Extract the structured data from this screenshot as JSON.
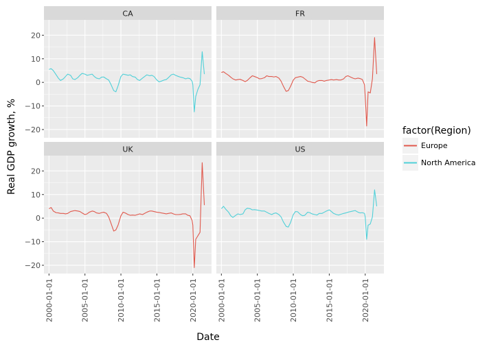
{
  "chart_data": {
    "type": "line",
    "xlabel": "Date",
    "ylabel": "Real GDP growth, %",
    "ylim": [
      -23.5,
      26.5
    ],
    "yticks": [
      20,
      10,
      0,
      -10,
      -20
    ],
    "ytick_labels": [
      "20",
      "10",
      "0",
      "−10",
      "−20"
    ],
    "xlim": [
      1999.3,
      2022.6
    ],
    "xticks": [
      2000,
      2005,
      2010,
      2015,
      2020
    ],
    "xtick_labels": [
      "2000-01-01",
      "2005-01-01",
      "2010-01-01",
      "2015-01-01",
      "2020-01-01"
    ],
    "grid": true,
    "legend": {
      "title": "factor(Region)",
      "position": "right",
      "entries": [
        {
          "label": "Europe",
          "color": "#e0584c"
        },
        {
          "label": "North America",
          "color": "#4fd0d8"
        }
      ]
    },
    "panels": [
      {
        "name": "CA",
        "region": "North America",
        "points": [
          [
            2000.0,
            5.5
          ],
          [
            2000.3,
            5.8
          ],
          [
            2000.6,
            5.0
          ],
          [
            2001.0,
            3.2
          ],
          [
            2001.3,
            1.8
          ],
          [
            2001.6,
            0.8
          ],
          [
            2002.0,
            1.5
          ],
          [
            2002.3,
            2.5
          ],
          [
            2002.6,
            3.5
          ],
          [
            2003.0,
            3.0
          ],
          [
            2003.3,
            1.5
          ],
          [
            2003.6,
            1.2
          ],
          [
            2004.0,
            2.0
          ],
          [
            2004.3,
            3.0
          ],
          [
            2004.6,
            3.8
          ],
          [
            2005.0,
            3.5
          ],
          [
            2005.3,
            3.0
          ],
          [
            2005.6,
            3.2
          ],
          [
            2006.0,
            3.5
          ],
          [
            2006.3,
            2.5
          ],
          [
            2006.6,
            1.8
          ],
          [
            2007.0,
            1.5
          ],
          [
            2007.3,
            2.2
          ],
          [
            2007.6,
            2.3
          ],
          [
            2008.0,
            1.5
          ],
          [
            2008.3,
            1.0
          ],
          [
            2008.6,
            -0.8
          ],
          [
            2009.0,
            -3.5
          ],
          [
            2009.3,
            -4.0
          ],
          [
            2009.6,
            -1.5
          ],
          [
            2010.0,
            2.5
          ],
          [
            2010.3,
            3.5
          ],
          [
            2010.6,
            3.3
          ],
          [
            2011.0,
            3.0
          ],
          [
            2011.3,
            3.2
          ],
          [
            2011.6,
            2.5
          ],
          [
            2012.0,
            2.2
          ],
          [
            2012.3,
            1.2
          ],
          [
            2012.6,
            0.8
          ],
          [
            2013.0,
            1.8
          ],
          [
            2013.3,
            2.5
          ],
          [
            2013.6,
            3.2
          ],
          [
            2014.0,
            2.8
          ],
          [
            2014.3,
            3.0
          ],
          [
            2014.6,
            2.5
          ],
          [
            2015.0,
            1.0
          ],
          [
            2015.3,
            0.2
          ],
          [
            2015.6,
            0.5
          ],
          [
            2016.0,
            1.0
          ],
          [
            2016.3,
            1.2
          ],
          [
            2016.6,
            2.0
          ],
          [
            2017.0,
            3.2
          ],
          [
            2017.3,
            3.5
          ],
          [
            2017.6,
            3.0
          ],
          [
            2018.0,
            2.5
          ],
          [
            2018.3,
            2.2
          ],
          [
            2018.6,
            2.0
          ],
          [
            2019.0,
            1.5
          ],
          [
            2019.3,
            1.8
          ],
          [
            2019.6,
            1.6
          ],
          [
            2019.9,
            0.5
          ],
          [
            2020.0,
            -1.0
          ],
          [
            2020.2,
            -12.5
          ],
          [
            2020.4,
            -6.0
          ],
          [
            2020.7,
            -3.0
          ],
          [
            2021.0,
            -1.0
          ],
          [
            2021.3,
            13.0
          ],
          [
            2021.6,
            3.5
          ]
        ]
      },
      {
        "name": "FR",
        "region": "Europe",
        "points": [
          [
            2000.0,
            4.2
          ],
          [
            2000.3,
            4.5
          ],
          [
            2000.6,
            3.8
          ],
          [
            2001.0,
            3.0
          ],
          [
            2001.3,
            2.2
          ],
          [
            2001.6,
            1.5
          ],
          [
            2002.0,
            1.0
          ],
          [
            2002.3,
            1.2
          ],
          [
            2002.6,
            1.3
          ],
          [
            2003.0,
            0.8
          ],
          [
            2003.3,
            0.3
          ],
          [
            2003.6,
            0.8
          ],
          [
            2004.0,
            2.0
          ],
          [
            2004.3,
            2.8
          ],
          [
            2004.6,
            2.5
          ],
          [
            2005.0,
            2.0
          ],
          [
            2005.3,
            1.5
          ],
          [
            2005.6,
            1.6
          ],
          [
            2006.0,
            2.0
          ],
          [
            2006.3,
            2.8
          ],
          [
            2006.6,
            2.5
          ],
          [
            2007.0,
            2.5
          ],
          [
            2007.3,
            2.3
          ],
          [
            2007.6,
            2.5
          ],
          [
            2008.0,
            1.8
          ],
          [
            2008.3,
            0.5
          ],
          [
            2008.6,
            -1.5
          ],
          [
            2009.0,
            -3.8
          ],
          [
            2009.3,
            -3.5
          ],
          [
            2009.6,
            -1.8
          ],
          [
            2010.0,
            1.0
          ],
          [
            2010.3,
            2.0
          ],
          [
            2010.6,
            2.2
          ],
          [
            2011.0,
            2.5
          ],
          [
            2011.3,
            2.2
          ],
          [
            2011.6,
            1.5
          ],
          [
            2012.0,
            0.5
          ],
          [
            2012.3,
            0.3
          ],
          [
            2012.6,
            0.0
          ],
          [
            2013.0,
            -0.2
          ],
          [
            2013.3,
            0.5
          ],
          [
            2013.6,
            0.8
          ],
          [
            2014.0,
            0.8
          ],
          [
            2014.3,
            0.5
          ],
          [
            2014.6,
            0.8
          ],
          [
            2015.0,
            1.0
          ],
          [
            2015.3,
            1.2
          ],
          [
            2015.6,
            1.0
          ],
          [
            2016.0,
            1.2
          ],
          [
            2016.3,
            1.0
          ],
          [
            2016.6,
            1.0
          ],
          [
            2017.0,
            1.5
          ],
          [
            2017.3,
            2.5
          ],
          [
            2017.6,
            2.8
          ],
          [
            2018.0,
            2.2
          ],
          [
            2018.3,
            1.8
          ],
          [
            2018.6,
            1.5
          ],
          [
            2019.0,
            1.8
          ],
          [
            2019.3,
            1.6
          ],
          [
            2019.6,
            1.2
          ],
          [
            2019.9,
            -1.0
          ],
          [
            2020.0,
            -6.0
          ],
          [
            2020.2,
            -18.5
          ],
          [
            2020.4,
            -4.0
          ],
          [
            2020.7,
            -4.5
          ],
          [
            2021.0,
            1.5
          ],
          [
            2021.3,
            19.0
          ],
          [
            2021.6,
            3.5
          ]
        ]
      },
      {
        "name": "UK",
        "region": "Europe",
        "points": [
          [
            2000.0,
            4.0
          ],
          [
            2000.3,
            4.5
          ],
          [
            2000.6,
            3.0
          ],
          [
            2001.0,
            2.3
          ],
          [
            2001.3,
            2.2
          ],
          [
            2001.6,
            2.0
          ],
          [
            2002.0,
            2.0
          ],
          [
            2002.3,
            1.8
          ],
          [
            2002.6,
            2.0
          ],
          [
            2003.0,
            2.8
          ],
          [
            2003.3,
            3.0
          ],
          [
            2003.6,
            3.2
          ],
          [
            2004.0,
            3.0
          ],
          [
            2004.3,
            2.8
          ],
          [
            2004.6,
            2.2
          ],
          [
            2005.0,
            1.5
          ],
          [
            2005.3,
            1.8
          ],
          [
            2005.6,
            2.5
          ],
          [
            2006.0,
            3.0
          ],
          [
            2006.3,
            2.8
          ],
          [
            2006.6,
            2.2
          ],
          [
            2007.0,
            2.0
          ],
          [
            2007.3,
            2.3
          ],
          [
            2007.6,
            2.5
          ],
          [
            2008.0,
            2.0
          ],
          [
            2008.3,
            0.5
          ],
          [
            2008.6,
            -2.0
          ],
          [
            2009.0,
            -5.5
          ],
          [
            2009.3,
            -5.0
          ],
          [
            2009.6,
            -3.0
          ],
          [
            2010.0,
            1.0
          ],
          [
            2010.3,
            2.5
          ],
          [
            2010.6,
            2.2
          ],
          [
            2011.0,
            1.5
          ],
          [
            2011.3,
            1.2
          ],
          [
            2011.6,
            1.3
          ],
          [
            2012.0,
            1.2
          ],
          [
            2012.3,
            1.5
          ],
          [
            2012.6,
            1.8
          ],
          [
            2013.0,
            1.5
          ],
          [
            2013.3,
            2.0
          ],
          [
            2013.6,
            2.5
          ],
          [
            2014.0,
            3.0
          ],
          [
            2014.3,
            3.0
          ],
          [
            2014.6,
            2.8
          ],
          [
            2015.0,
            2.5
          ],
          [
            2015.3,
            2.4
          ],
          [
            2015.6,
            2.2
          ],
          [
            2016.0,
            2.0
          ],
          [
            2016.3,
            1.8
          ],
          [
            2016.6,
            2.0
          ],
          [
            2017.0,
            2.2
          ],
          [
            2017.3,
            1.8
          ],
          [
            2017.6,
            1.5
          ],
          [
            2018.0,
            1.5
          ],
          [
            2018.3,
            1.6
          ],
          [
            2018.6,
            1.8
          ],
          [
            2019.0,
            1.8
          ],
          [
            2019.3,
            1.2
          ],
          [
            2019.6,
            1.0
          ],
          [
            2019.9,
            -1.0
          ],
          [
            2020.0,
            -3.0
          ],
          [
            2020.2,
            -21.0
          ],
          [
            2020.4,
            -9.0
          ],
          [
            2020.7,
            -7.5
          ],
          [
            2021.0,
            -6.0
          ],
          [
            2021.3,
            23.5
          ],
          [
            2021.6,
            5.5
          ]
        ]
      },
      {
        "name": "US",
        "region": "North America",
        "points": [
          [
            2000.0,
            4.0
          ],
          [
            2000.3,
            5.0
          ],
          [
            2000.6,
            3.8
          ],
          [
            2001.0,
            2.5
          ],
          [
            2001.3,
            1.0
          ],
          [
            2001.6,
            0.3
          ],
          [
            2002.0,
            1.2
          ],
          [
            2002.3,
            1.8
          ],
          [
            2002.6,
            1.5
          ],
          [
            2003.0,
            1.8
          ],
          [
            2003.3,
            3.5
          ],
          [
            2003.6,
            4.2
          ],
          [
            2004.0,
            4.0
          ],
          [
            2004.3,
            3.5
          ],
          [
            2004.6,
            3.6
          ],
          [
            2005.0,
            3.4
          ],
          [
            2005.3,
            3.2
          ],
          [
            2005.6,
            3.0
          ],
          [
            2006.0,
            3.0
          ],
          [
            2006.3,
            2.5
          ],
          [
            2006.6,
            2.0
          ],
          [
            2007.0,
            1.5
          ],
          [
            2007.3,
            2.0
          ],
          [
            2007.6,
            2.2
          ],
          [
            2008.0,
            1.5
          ],
          [
            2008.3,
            0.5
          ],
          [
            2008.6,
            -1.5
          ],
          [
            2009.0,
            -3.5
          ],
          [
            2009.3,
            -3.8
          ],
          [
            2009.6,
            -2.0
          ],
          [
            2010.0,
            1.5
          ],
          [
            2010.3,
            2.8
          ],
          [
            2010.6,
            2.7
          ],
          [
            2011.0,
            1.5
          ],
          [
            2011.3,
            1.0
          ],
          [
            2011.6,
            1.2
          ],
          [
            2012.0,
            2.5
          ],
          [
            2012.3,
            2.3
          ],
          [
            2012.6,
            1.8
          ],
          [
            2013.0,
            1.5
          ],
          [
            2013.3,
            1.3
          ],
          [
            2013.6,
            2.0
          ],
          [
            2014.0,
            2.0
          ],
          [
            2014.3,
            2.5
          ],
          [
            2014.6,
            3.0
          ],
          [
            2015.0,
            3.5
          ],
          [
            2015.3,
            2.8
          ],
          [
            2015.6,
            2.0
          ],
          [
            2016.0,
            1.5
          ],
          [
            2016.3,
            1.3
          ],
          [
            2016.6,
            1.6
          ],
          [
            2017.0,
            2.0
          ],
          [
            2017.3,
            2.2
          ],
          [
            2017.6,
            2.5
          ],
          [
            2018.0,
            2.8
          ],
          [
            2018.3,
            3.0
          ],
          [
            2018.6,
            3.2
          ],
          [
            2019.0,
            2.5
          ],
          [
            2019.3,
            2.2
          ],
          [
            2019.6,
            2.3
          ],
          [
            2019.9,
            2.0
          ],
          [
            2020.0,
            0.5
          ],
          [
            2020.2,
            -9.0
          ],
          [
            2020.4,
            -3.0
          ],
          [
            2020.7,
            -2.5
          ],
          [
            2021.0,
            0.5
          ],
          [
            2021.3,
            12.0
          ],
          [
            2021.6,
            5.0
          ]
        ]
      }
    ]
  }
}
